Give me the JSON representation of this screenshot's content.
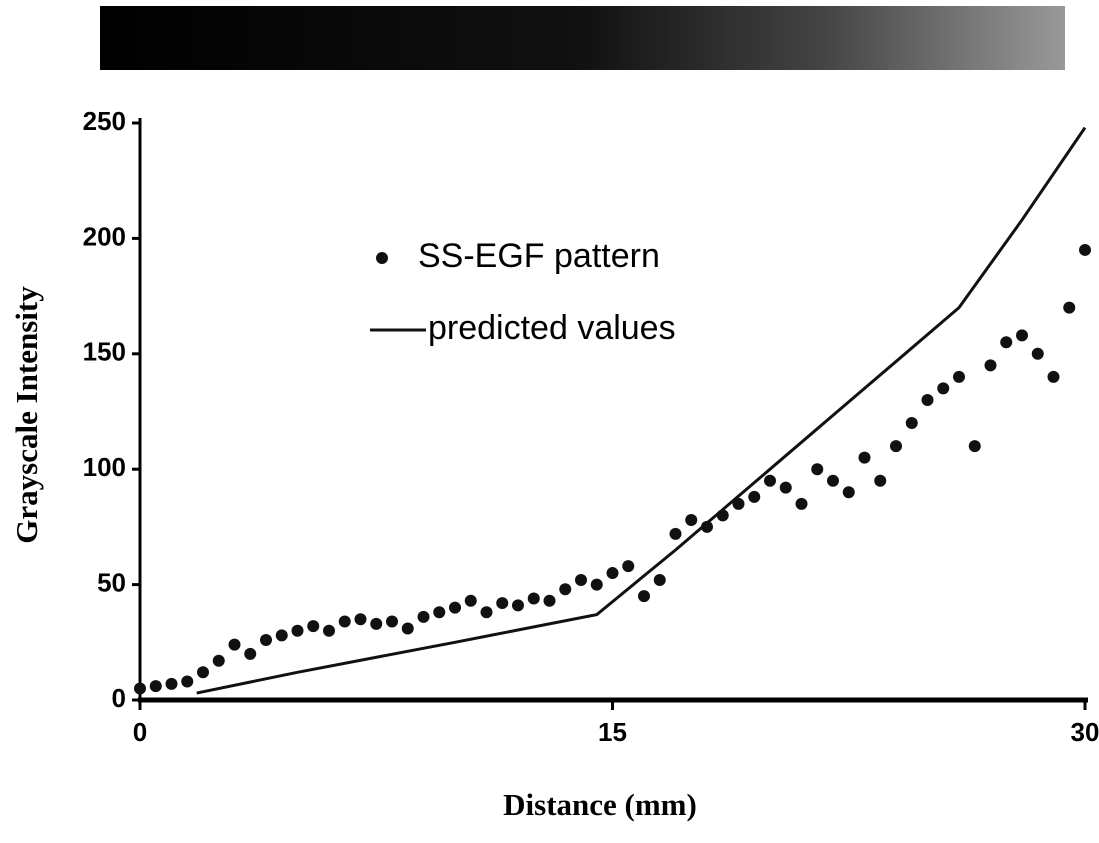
{
  "chart_data": {
    "type": "scatter",
    "xlabel": "Distance (mm)",
    "ylabel": "Grayscale Intensity",
    "xlim": [
      0,
      30
    ],
    "xticks": [
      0,
      15,
      30
    ],
    "ylim": [
      0,
      250
    ],
    "yticks": [
      0,
      50,
      100,
      150,
      200,
      250
    ],
    "series": [
      {
        "name": "SS-EGF pattern",
        "type": "scatter",
        "color": "#111111",
        "x": [
          0,
          0.5,
          1,
          1.5,
          2,
          2.5,
          3,
          3.5,
          4,
          4.5,
          5,
          5.5,
          6,
          6.5,
          7,
          7.5,
          8,
          8.5,
          9,
          9.5,
          10,
          10.5,
          11,
          11.5,
          12,
          12.5,
          13,
          13.5,
          14,
          14.5,
          15,
          15.5,
          16,
          16.5,
          17,
          17.5,
          18,
          18.5,
          19,
          19.5,
          20,
          20.5,
          21,
          21.5,
          22,
          22.5,
          23,
          23.5,
          24,
          24.5,
          25,
          25.5,
          26,
          26.5,
          27,
          27.5,
          28,
          28.5,
          29,
          29.5,
          30
        ],
        "values": [
          5,
          6,
          7,
          8,
          12,
          17,
          24,
          20,
          26,
          28,
          30,
          32,
          30,
          34,
          35,
          33,
          34,
          31,
          36,
          38,
          40,
          43,
          38,
          42,
          41,
          44,
          43,
          48,
          52,
          50,
          55,
          58,
          45,
          52,
          72,
          78,
          75,
          80,
          85,
          88,
          95,
          92,
          85,
          100,
          95,
          90,
          105,
          95,
          110,
          120,
          130,
          135,
          140,
          110,
          145,
          155,
          158,
          150,
          140,
          170,
          195
        ]
      },
      {
        "name": "predicted values",
        "type": "line",
        "color": "#111111",
        "x": [
          1.8,
          5,
          10,
          14.5,
          17,
          20,
          23,
          26,
          28,
          30
        ],
        "values": [
          3,
          12,
          25,
          37,
          65,
          100,
          135,
          170,
          208,
          248
        ]
      }
    ]
  }
}
